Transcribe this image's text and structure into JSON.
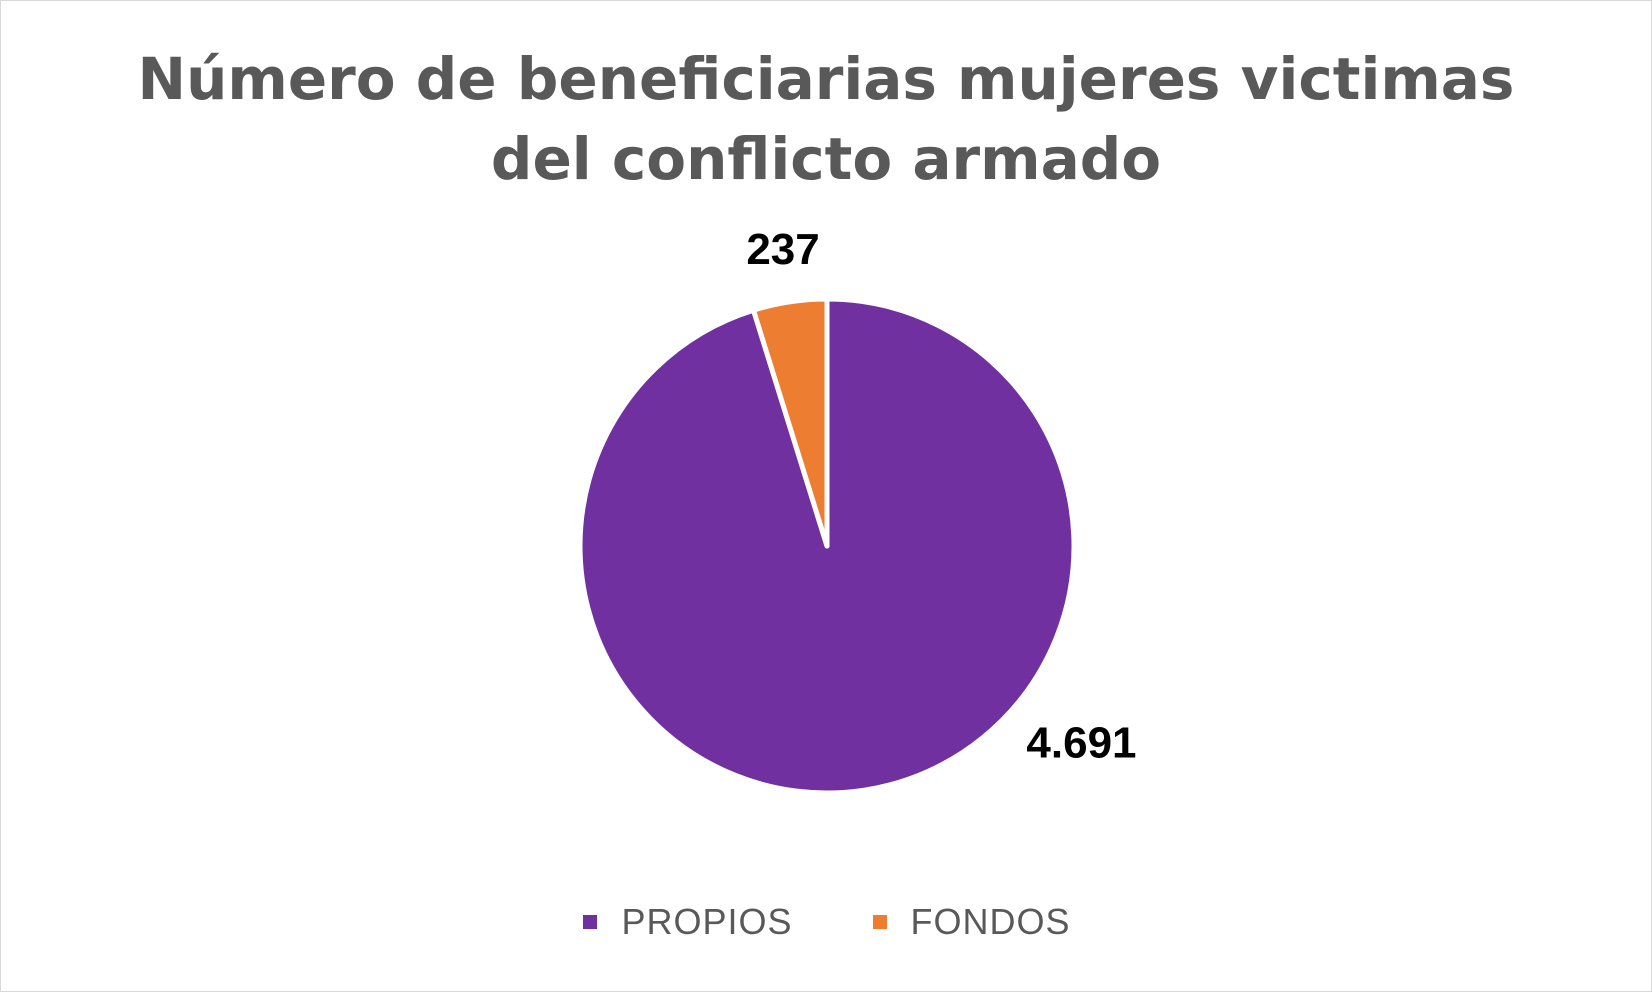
{
  "chart_data": {
    "type": "pie",
    "title": "Número de beneficiarias mujeres victimas del conflicto armado",
    "categories": [
      "PROPIOS",
      "FONDOS"
    ],
    "values": [
      4691,
      237
    ],
    "data_labels": [
      "4.691",
      "237"
    ],
    "colors": [
      "#7030A0",
      "#ED7D31"
    ],
    "legend": "bottom",
    "start_angle_deg": 0,
    "direction": "clockwise"
  }
}
